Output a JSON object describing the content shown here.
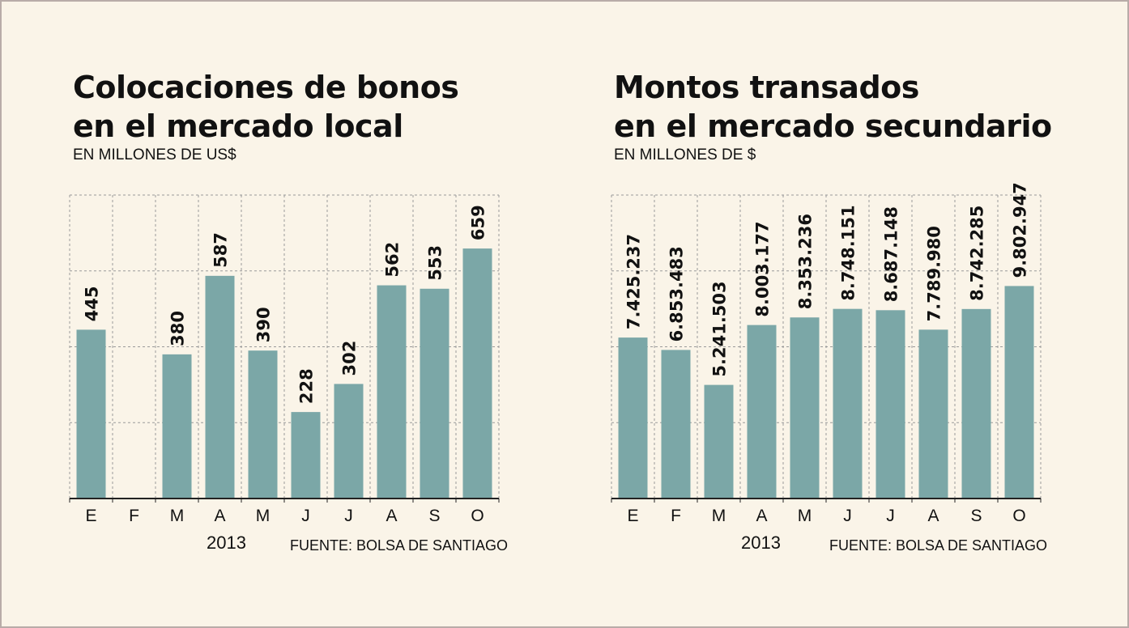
{
  "charts": [
    {
      "title_line1": "Colocaciones de bonos",
      "title_line2": "en el mercado local",
      "subtitle": "EN MILLONES DE US$",
      "year": "2013",
      "source": "FUENTE: BOLSA DE SANTIAGO"
    },
    {
      "title_line1": "Montos transados",
      "title_line2": "en el mercado secundario",
      "subtitle": "EN MILLONES DE $",
      "year": "2013",
      "source": "FUENTE: BOLSA DE SANTIAGO"
    }
  ],
  "colors": {
    "bar": "#7ba7a7",
    "background": "#faf4e8",
    "border": "#b8aca8"
  },
  "chart_data": [
    {
      "type": "bar",
      "title": "Colocaciones de bonos en el mercado local",
      "subtitle": "EN MILLONES DE US$",
      "categories": [
        "E",
        "F",
        "M",
        "A",
        "M",
        "J",
        "J",
        "A",
        "S",
        "O"
      ],
      "values": [
        445,
        null,
        380,
        587,
        390,
        228,
        302,
        562,
        553,
        659
      ],
      "value_labels": [
        "445",
        "",
        "380",
        "587",
        "390",
        "228",
        "302",
        "562",
        "553",
        "659"
      ],
      "xlabel": "2013",
      "ylabel": "",
      "ylim": [
        0,
        800
      ],
      "grid": true
    },
    {
      "type": "bar",
      "title": "Montos transados en el mercado secundario",
      "subtitle": "EN MILLONES DE $",
      "categories": [
        "E",
        "F",
        "M",
        "A",
        "M",
        "J",
        "J",
        "A",
        "S",
        "O"
      ],
      "values": [
        7425237,
        6853483,
        5241503,
        8003177,
        8353236,
        8748151,
        8687148,
        7789980,
        8742285,
        9802947
      ],
      "value_labels": [
        "7.425.237",
        "6.853.483",
        "5.241.503",
        "8.003.177",
        "8.353.236",
        "8.748.151",
        "8.687.148",
        "7.789.980",
        "8.742.285",
        "9.802.947"
      ],
      "xlabel": "2013",
      "ylabel": "",
      "ylim": [
        0,
        14000000
      ],
      "grid": true
    }
  ]
}
